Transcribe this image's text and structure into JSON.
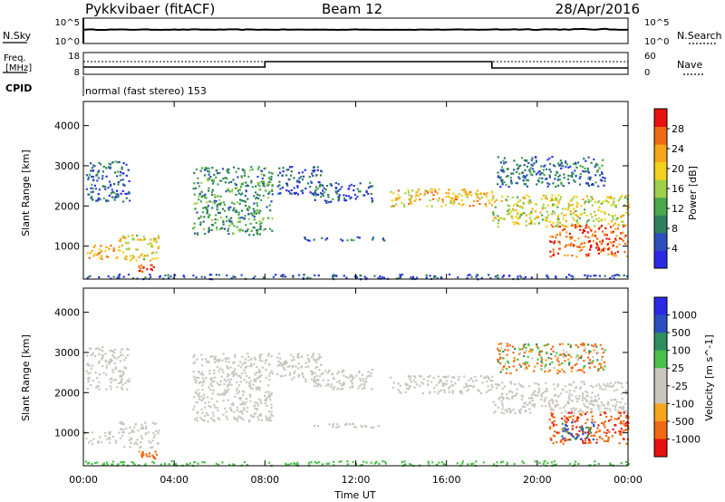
{
  "header": {
    "title": "Pykkvibaer (fitACF)",
    "beam": "Beam 12",
    "date": "28/Apr/2016"
  },
  "panels": {
    "nsky": {
      "label": "N.Sky",
      "ticks_left": [
        "10^5",
        "10^0"
      ]
    },
    "nsearch": {
      "label": "N.Search",
      "ticks_right": [
        "10^5",
        "10^0"
      ]
    },
    "freq": {
      "label_line1": "Freq.",
      "label_line2": "[MHz]",
      "ticks_left": [
        "18",
        "8"
      ]
    },
    "nave": {
      "label": "Nave",
      "ticks_right": [
        "60",
        "0"
      ]
    },
    "cpid": {
      "label": "CPID",
      "text": "normal (fast stereo) 153"
    }
  },
  "colors": {
    "power": [
      "#2a2ae6",
      "#2b4fbf",
      "#2e7f5e",
      "#49a84a",
      "#9fd04a",
      "#f2d21c",
      "#f7a51a",
      "#f06a12",
      "#e8110f"
    ],
    "velocity": [
      "#e8110f",
      "#f06a12",
      "#f7a51a",
      "#c9c6bf",
      "#c9c6bf",
      "#49c24a",
      "#2e8f5e",
      "#2b4fbf",
      "#2a2ae6"
    ]
  },
  "chart_data": [
    {
      "type": "heatmap",
      "title": "",
      "ylabel": "Slant Range [km]",
      "xlabel": "",
      "xlim": [
        "00:00",
        "24:00"
      ],
      "ylim": [
        180,
        4600
      ],
      "yticks": [
        "1000",
        "2000",
        "3000",
        "4000"
      ],
      "colorbar": {
        "label": "Power [dB]",
        "ticks": [
          "4",
          "8",
          "12",
          "16",
          "20",
          "24",
          "28"
        ],
        "range": [
          0,
          30
        ]
      },
      "echo_regions": [
        {
          "t_start": 0.0,
          "t_end": 1.6,
          "range_low": 700,
          "range_high": 1050,
          "dB": 22
        },
        {
          "t_start": 1.5,
          "t_end": 3.3,
          "range_low": 650,
          "range_high": 1300,
          "dB": 18
        },
        {
          "t_start": 2.4,
          "t_end": 3.2,
          "range_low": 380,
          "range_high": 560,
          "dB": 28
        },
        {
          "t_start": 0.1,
          "t_end": 2.0,
          "range_low": 2100,
          "range_high": 3150,
          "dB": 6
        },
        {
          "t_start": 4.8,
          "t_end": 8.3,
          "range_low": 1300,
          "range_high": 3000,
          "dB": 10
        },
        {
          "t_start": 8.5,
          "t_end": 10.5,
          "range_low": 2300,
          "range_high": 3000,
          "dB": 5
        },
        {
          "t_start": 9.7,
          "t_end": 13.3,
          "range_low": 1150,
          "range_high": 1250,
          "dB": 6
        },
        {
          "t_start": 10.0,
          "t_end": 12.7,
          "range_low": 2100,
          "range_high": 2600,
          "dB": 6
        },
        {
          "t_start": 13.5,
          "t_end": 18.0,
          "range_low": 2000,
          "range_high": 2450,
          "dB": 20
        },
        {
          "t_start": 18.0,
          "t_end": 24.0,
          "range_low": 1500,
          "range_high": 2300,
          "dB": 17
        },
        {
          "t_start": 20.5,
          "t_end": 24.0,
          "range_low": 750,
          "range_high": 1550,
          "dB": 26
        },
        {
          "t_start": 18.2,
          "t_end": 23.0,
          "range_low": 2500,
          "range_high": 3250,
          "dB": 7
        },
        {
          "t_start": 0.0,
          "t_end": 24.0,
          "range_low": 200,
          "range_high": 320,
          "dB": 5
        }
      ]
    },
    {
      "type": "heatmap",
      "title": "",
      "ylabel": "Slant Range [km]",
      "xlabel": "Time UT",
      "xticks": [
        "00:00",
        "04:00",
        "08:00",
        "12:00",
        "16:00",
        "20:00",
        "00:00"
      ],
      "xlim": [
        "00:00",
        "24:00"
      ],
      "ylim": [
        180,
        4600
      ],
      "yticks": [
        "1000",
        "2000",
        "3000",
        "4000"
      ],
      "colorbar": {
        "label": "Velocity [m s^-1]",
        "ticks": [
          "1000",
          "500",
          "100",
          "25",
          "-25",
          "-100",
          "-500",
          "-1000"
        ]
      },
      "echo_regions": [
        {
          "t_start": 0.0,
          "t_end": 1.6,
          "range_low": 700,
          "range_high": 1050,
          "velocity": 0
        },
        {
          "t_start": 1.5,
          "t_end": 3.3,
          "range_low": 650,
          "range_high": 1300,
          "velocity": 0
        },
        {
          "t_start": 2.4,
          "t_end": 3.2,
          "range_low": 380,
          "range_high": 560,
          "velocity": -300
        },
        {
          "t_start": 0.1,
          "t_end": 2.0,
          "range_low": 2100,
          "range_high": 3150,
          "velocity": 0
        },
        {
          "t_start": 4.8,
          "t_end": 8.3,
          "range_low": 1300,
          "range_high": 3000,
          "velocity": 0
        },
        {
          "t_start": 8.5,
          "t_end": 10.5,
          "range_low": 2300,
          "range_high": 3000,
          "velocity": 0
        },
        {
          "t_start": 9.7,
          "t_end": 13.3,
          "range_low": 1150,
          "range_high": 1250,
          "velocity": 0
        },
        {
          "t_start": 10.0,
          "t_end": 12.7,
          "range_low": 2100,
          "range_high": 2600,
          "velocity": 0
        },
        {
          "t_start": 13.5,
          "t_end": 18.0,
          "range_low": 2000,
          "range_high": 2450,
          "velocity": 0
        },
        {
          "t_start": 18.0,
          "t_end": 24.0,
          "range_low": 1500,
          "range_high": 2300,
          "velocity": 0
        },
        {
          "t_start": 20.5,
          "t_end": 24.0,
          "range_low": 750,
          "range_high": 1550,
          "velocity": -400
        },
        {
          "t_start": 21.0,
          "t_end": 22.5,
          "range_low": 850,
          "range_high": 1300,
          "velocity": 600
        },
        {
          "t_start": 18.2,
          "t_end": 23.0,
          "range_low": 2500,
          "range_high": 3250,
          "velocity": -100
        },
        {
          "t_start": 0.0,
          "t_end": 24.0,
          "range_low": 200,
          "range_high": 320,
          "velocity": 50
        }
      ]
    }
  ]
}
